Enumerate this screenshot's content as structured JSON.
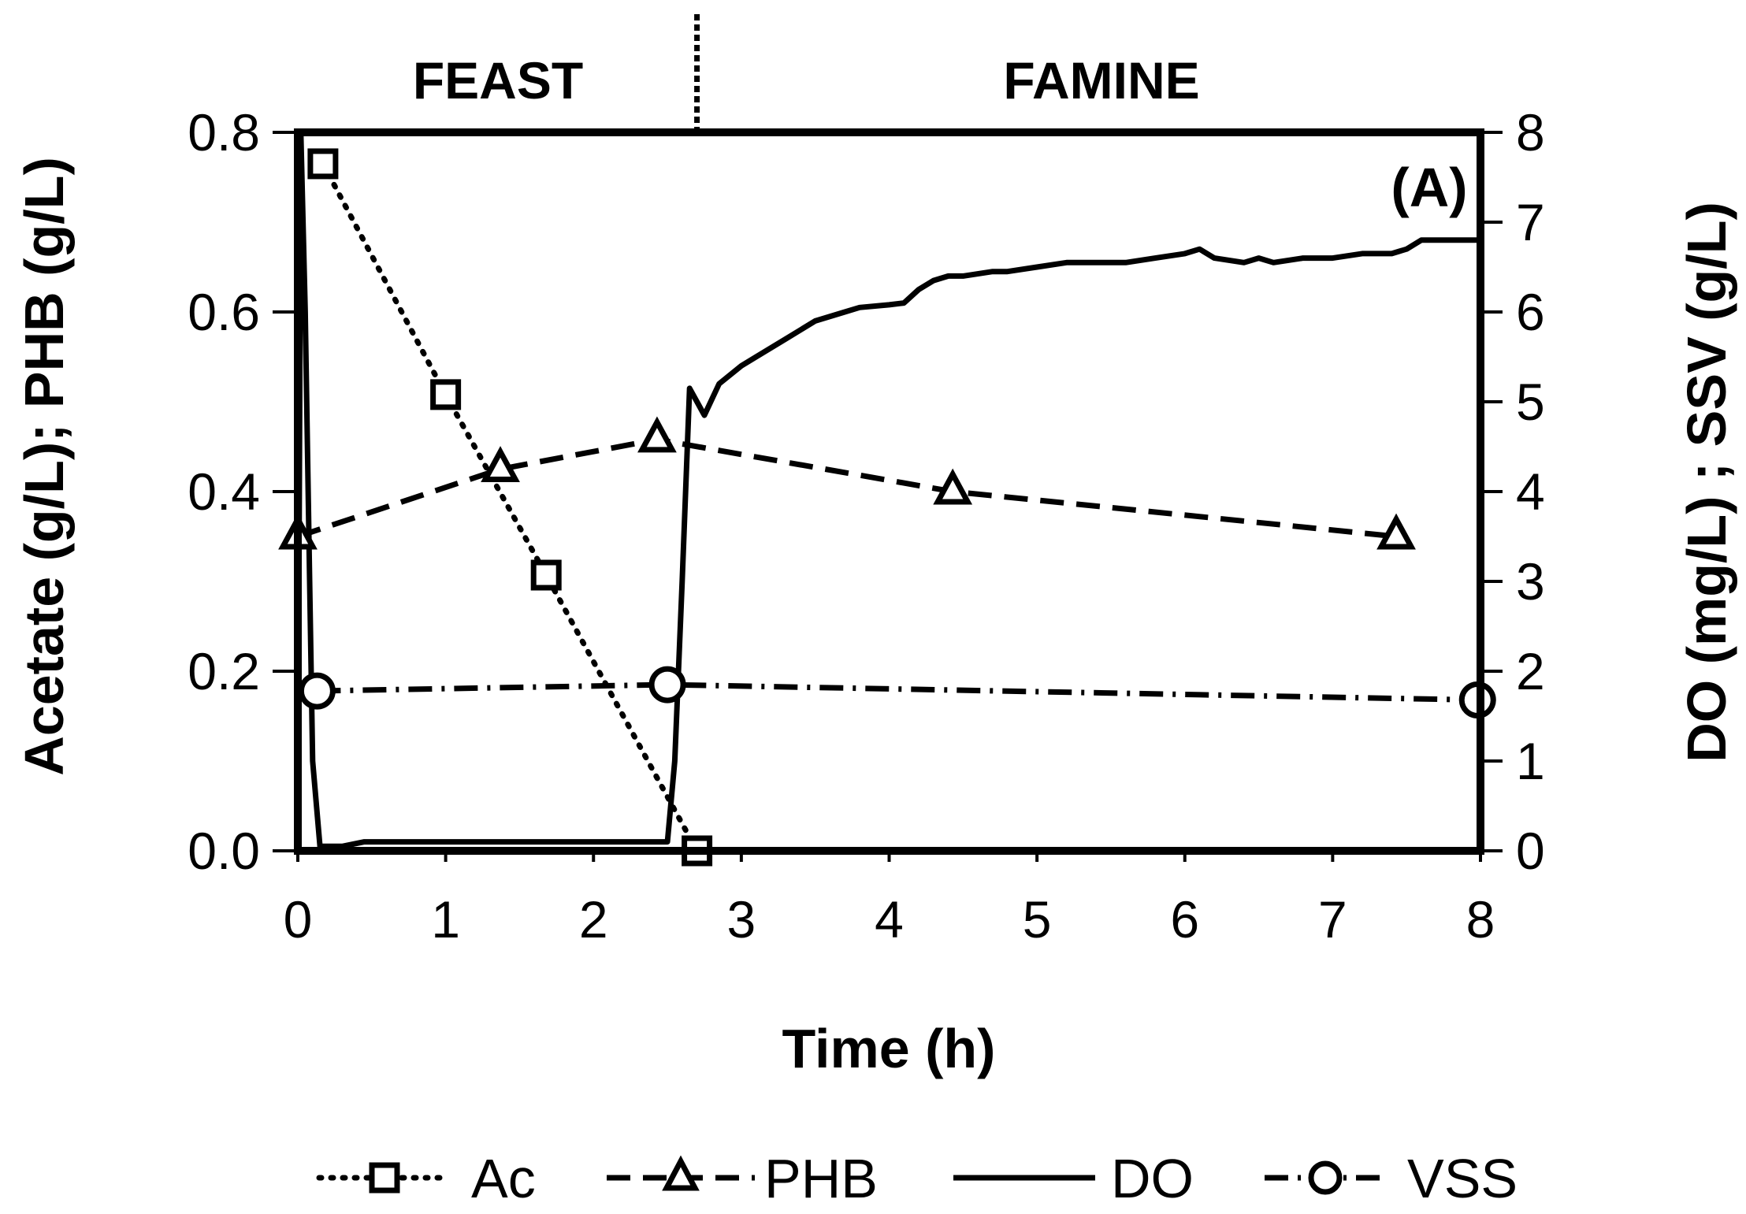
{
  "chart_data": {
    "type": "line",
    "x_title": "Time (h)",
    "y_left_title": "Acetate (g/L); PHB (g/L)",
    "y_right_title": "DO (mg/L) ; SSV (g/L)",
    "xlim": [
      0,
      8
    ],
    "ylim_left": [
      0,
      0.8
    ],
    "ylim_right": [
      0,
      8
    ],
    "x_ticks": [
      "0",
      "1",
      "2",
      "3",
      "4",
      "5",
      "6",
      "7",
      "8"
    ],
    "y_left_ticks": [
      "0.0",
      "0.2",
      "0.4",
      "0.6",
      "0.8"
    ],
    "y_right_ticks": [
      "0",
      "1",
      "2",
      "3",
      "4",
      "5",
      "6",
      "7",
      "8"
    ],
    "phase_labels": {
      "feast": "FEAST",
      "famine": "FAMINE"
    },
    "phase_boundary_x": 2.7,
    "panel_label": "(A)",
    "series": [
      {
        "name": "Ac",
        "axis": "left",
        "marker": "square",
        "style": "dotted",
        "x": [
          0.17,
          1.0,
          1.68,
          2.7
        ],
        "y": [
          0.765,
          0.508,
          0.307,
          0.0
        ]
      },
      {
        "name": "PHB",
        "axis": "left",
        "marker": "triangle",
        "style": "dashed",
        "x": [
          0.0,
          1.37,
          2.43,
          4.43,
          7.43
        ],
        "y": [
          0.35,
          0.425,
          0.458,
          0.4,
          0.35
        ]
      },
      {
        "name": "DO",
        "axis": "right",
        "marker": "none",
        "style": "solid",
        "x": [
          0.0,
          0.02,
          0.05,
          0.08,
          0.1,
          0.15,
          0.3,
          0.45,
          1.0,
          1.5,
          2.0,
          2.45,
          2.5,
          2.55,
          2.6,
          2.65,
          2.75,
          2.85,
          3.0,
          3.1,
          3.3,
          3.5,
          3.7,
          3.8,
          4.0,
          4.1,
          4.2,
          4.3,
          4.4,
          4.5,
          4.7,
          4.8,
          5.0,
          5.2,
          5.4,
          5.6,
          5.8,
          6.0,
          6.1,
          6.2,
          6.4,
          6.5,
          6.6,
          6.8,
          7.0,
          7.2,
          7.4,
          7.5,
          7.6,
          8.0
        ],
        "y": [
          0.0,
          8.0,
          6.0,
          3.0,
          1.0,
          0.05,
          0.05,
          0.1,
          0.1,
          0.1,
          0.1,
          0.1,
          0.1,
          1.0,
          3.0,
          5.15,
          4.85,
          5.2,
          5.4,
          5.5,
          5.7,
          5.9,
          6.0,
          6.05,
          6.08,
          6.1,
          6.25,
          6.35,
          6.4,
          6.4,
          6.45,
          6.45,
          6.5,
          6.55,
          6.55,
          6.55,
          6.6,
          6.65,
          6.7,
          6.6,
          6.55,
          6.6,
          6.55,
          6.6,
          6.6,
          6.65,
          6.65,
          6.7,
          6.8,
          6.8
        ]
      },
      {
        "name": "VSS",
        "axis": "right",
        "marker": "circle",
        "style": "dashdot",
        "x": [
          0.13,
          2.5,
          7.98
        ],
        "y": [
          1.78,
          1.85,
          1.68
        ]
      }
    ]
  }
}
